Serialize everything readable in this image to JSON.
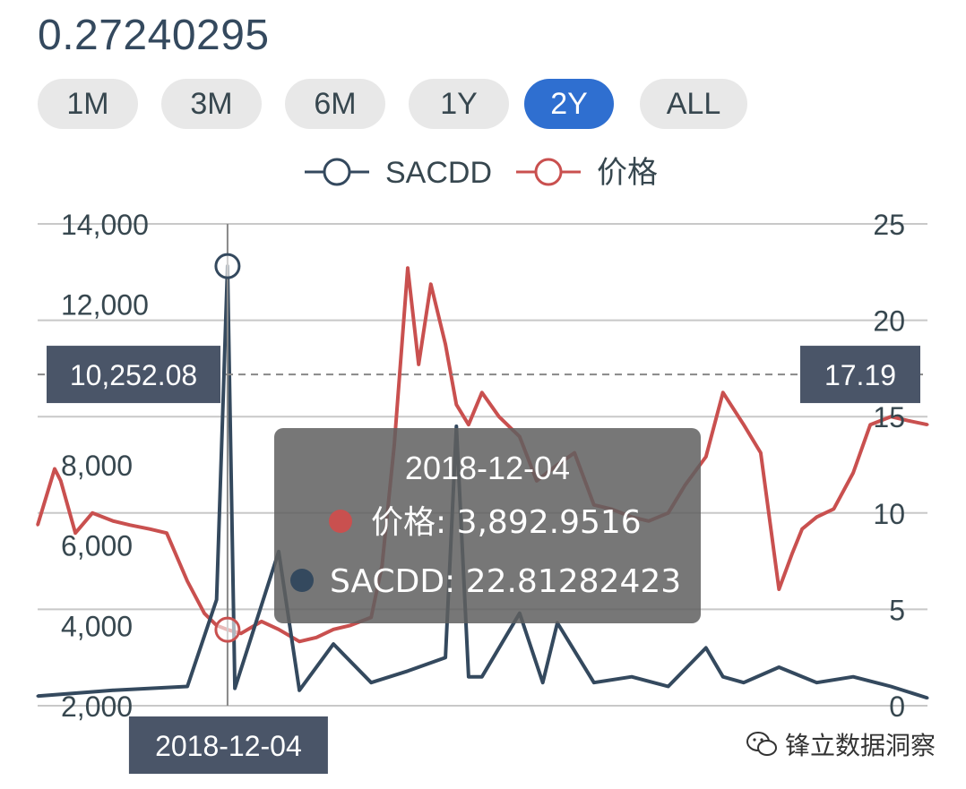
{
  "header": {
    "value": "0.27240295"
  },
  "range_buttons": [
    {
      "label": "1M",
      "active": false
    },
    {
      "label": "3M",
      "active": false
    },
    {
      "label": "6M",
      "active": false
    },
    {
      "label": "1Y",
      "active": false
    },
    {
      "label": "2Y",
      "active": true
    },
    {
      "label": "ALL",
      "active": false
    }
  ],
  "colors": {
    "sacdd": "#34495e",
    "price": "#c9504f",
    "active_button": "#2f6fd0",
    "label_box": "#4a5568"
  },
  "chart_data": {
    "type": "line",
    "legend": {
      "position": "top-center",
      "entries": [
        "SACDD",
        "价格"
      ]
    },
    "grid": true,
    "left_axis": {
      "ticks": [
        "2,000",
        "4,000",
        "6,000",
        "8,000",
        "12,000",
        "14,000"
      ],
      "range": [
        2000,
        14000
      ]
    },
    "right_axis": {
      "ticks": [
        "0",
        "5",
        "10",
        "15",
        "20",
        "25"
      ],
      "range": [
        0,
        25
      ]
    },
    "x_range": [
      "2018-07",
      "2020-07"
    ],
    "series": [
      {
        "name": "价格",
        "axis": "left",
        "x": [
          "2018-07-01",
          "2018-07-15",
          "2018-07-20",
          "2018-08-01",
          "2018-08-15",
          "2018-09-01",
          "2018-09-15",
          "2018-10-01",
          "2018-10-15",
          "2018-11-01",
          "2018-11-15",
          "2018-11-25",
          "2018-12-04",
          "2018-12-15",
          "2019-01-01",
          "2019-01-15",
          "2019-02-01",
          "2019-02-15",
          "2019-03-01",
          "2019-03-15",
          "2019-04-01",
          "2019-04-10",
          "2019-04-20",
          "2019-05-01",
          "2019-05-10",
          "2019-05-20",
          "2019-06-01",
          "2019-06-10",
          "2019-06-20",
          "2019-07-01",
          "2019-07-15",
          "2019-08-01",
          "2019-08-15",
          "2019-09-01",
          "2019-09-15",
          "2019-10-01",
          "2019-10-15",
          "2019-11-01",
          "2019-11-15",
          "2019-12-01",
          "2019-12-15",
          "2020-01-01",
          "2020-01-15",
          "2020-02-01",
          "2020-02-15",
          "2020-03-01",
          "2020-03-12",
          "2020-03-20",
          "2020-04-01",
          "2020-04-15",
          "2020-05-01",
          "2020-05-15",
          "2020-06-01",
          "2020-06-15",
          "2020-07-01"
        ],
        "values": [
          6500,
          7900,
          7600,
          6300,
          6800,
          6600,
          6500,
          6400,
          6300,
          5100,
          4300,
          4000,
          3893,
          3800,
          4100,
          3900,
          3600,
          3700,
          3900,
          4000,
          4200,
          5500,
          8500,
          12900,
          10500,
          12500,
          11000,
          9500,
          9000,
          9800,
          9200,
          8700,
          7600,
          8000,
          8300,
          7000,
          6900,
          6700,
          6600,
          6800,
          7500,
          8200,
          9800,
          9000,
          8300,
          4900,
          5800,
          6400,
          6700,
          6900,
          7800,
          9000,
          9200,
          9100,
          9000
        ]
      },
      {
        "name": "SACDD",
        "axis": "right",
        "x": [
          "2018-07-01",
          "2018-09-01",
          "2018-11-01",
          "2018-11-25",
          "2018-12-04",
          "2018-12-10",
          "2019-01-15",
          "2019-02-01",
          "2019-03-01",
          "2019-04-01",
          "2019-05-01",
          "2019-06-01",
          "2019-06-10",
          "2019-06-20",
          "2019-07-01",
          "2019-08-01",
          "2019-08-20",
          "2019-09-01",
          "2019-10-01",
          "2019-11-01",
          "2019-12-01",
          "2020-01-01",
          "2020-01-15",
          "2020-02-01",
          "2020-03-01",
          "2020-04-01",
          "2020-05-01",
          "2020-06-01",
          "2020-07-01"
        ],
        "values": [
          0.5,
          0.8,
          1.0,
          5.5,
          22.81,
          0.9,
          8.0,
          0.8,
          3.2,
          1.2,
          1.8,
          2.5,
          14.5,
          1.5,
          1.5,
          4.8,
          1.2,
          4.3,
          1.2,
          1.5,
          1.0,
          3.0,
          1.5,
          1.2,
          2.0,
          1.2,
          1.5,
          1.0,
          0.4
        ]
      }
    ]
  },
  "crosshair": {
    "date_label": "2018-12-04",
    "left_value_label": "10,252.08",
    "right_value_label": "17.19",
    "reference_value_right": 17.19
  },
  "tooltip": {
    "date": "2018-12-04",
    "rows": [
      {
        "label": "价格",
        "value": "3,892.9516"
      },
      {
        "label": "SACDD",
        "value": "22.81282423"
      }
    ]
  },
  "watermark": {
    "text": "锋立数据洞察"
  }
}
